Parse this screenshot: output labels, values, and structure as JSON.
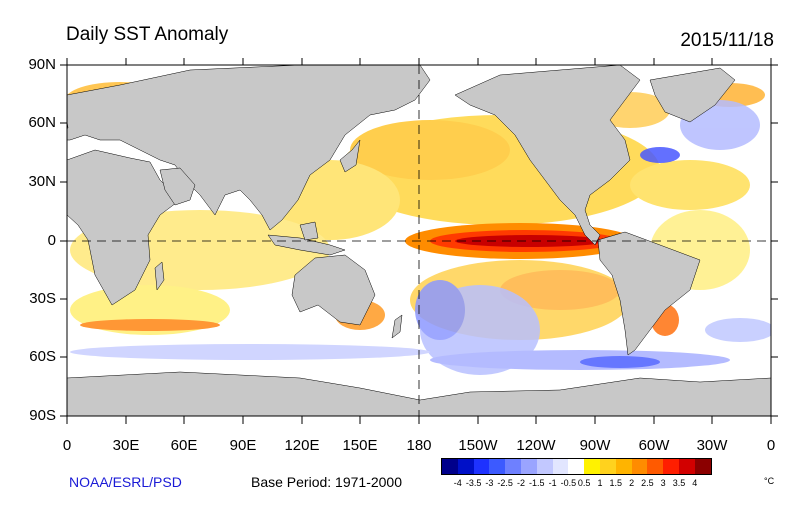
{
  "header": {
    "title": "Daily SST Anomaly",
    "date": "2015/11/18"
  },
  "axes": {
    "lat_labels": [
      "90N",
      "60N",
      "30N",
      "0",
      "30S",
      "60S",
      "90S"
    ],
    "lon_labels": [
      "0",
      "30E",
      "60E",
      "90E",
      "120E",
      "150E",
      "180",
      "150W",
      "120W",
      "90W",
      "60W",
      "30W",
      "0"
    ]
  },
  "footer": {
    "credit": "NOAA/ESRL/PSD",
    "base_period": "Base Period: 1971-2000"
  },
  "colorbar": {
    "unit": "°C",
    "ticks": [
      "-4",
      "-3.5",
      "-3",
      "-2.5",
      "-2",
      "-1.5",
      "-1",
      "-0.5",
      "0.5",
      "1",
      "1.5",
      "2",
      "2.5",
      "3",
      "3.5",
      "4"
    ],
    "colors": [
      "#00008b",
      "#0010c8",
      "#1e32ff",
      "#3c5aff",
      "#6e80ff",
      "#9aa4ff",
      "#c2c8ff",
      "#e2e6ff",
      "#ffffff",
      "#fff200",
      "#ffd21e",
      "#ffb400",
      "#ff8c00",
      "#ff5a00",
      "#ff1e00",
      "#d20000",
      "#8b0000"
    ]
  },
  "map": {
    "land_color": "#c8c8c8",
    "ocean_color": "#ffffff"
  }
}
